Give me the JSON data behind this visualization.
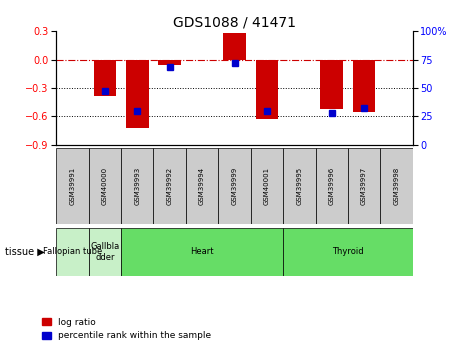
{
  "title": "GDS1088 / 41471",
  "samples": [
    "GSM39991",
    "GSM40000",
    "GSM39993",
    "GSM39992",
    "GSM39994",
    "GSM39999",
    "GSM40001",
    "GSM39995",
    "GSM39996",
    "GSM39997",
    "GSM39998"
  ],
  "log_ratios": [
    0.0,
    -0.38,
    -0.72,
    -0.06,
    0.0,
    0.28,
    -0.63,
    0.0,
    -0.52,
    -0.55,
    0.0
  ],
  "percentile_ranks": [
    null,
    47,
    30,
    68,
    null,
    72,
    30,
    null,
    28,
    32,
    null
  ],
  "tissue_groups": [
    {
      "label": "Fallopian tube",
      "start": 0,
      "end": 1,
      "color": "#c8f0c8"
    },
    {
      "label": "Gallbla\ndder",
      "start": 1,
      "end": 2,
      "color": "#c8f0c8"
    },
    {
      "label": "Heart",
      "start": 2,
      "end": 7,
      "color": "#66dd66"
    },
    {
      "label": "Thyroid",
      "start": 7,
      "end": 11,
      "color": "#66dd66"
    }
  ],
  "ylim_left": [
    -0.9,
    0.3
  ],
  "ylim_right": [
    0,
    100
  ],
  "yticks_left": [
    -0.9,
    -0.6,
    -0.3,
    0.0,
    0.3
  ],
  "yticks_right": [
    0,
    25,
    50,
    75,
    100
  ],
  "bar_color_red": "#CC0000",
  "bar_color_blue": "#0000CC",
  "hline_color": "#CC0000",
  "dotline_color": "#000000",
  "sample_box_color": "#cccccc",
  "bar_width": 0.7
}
